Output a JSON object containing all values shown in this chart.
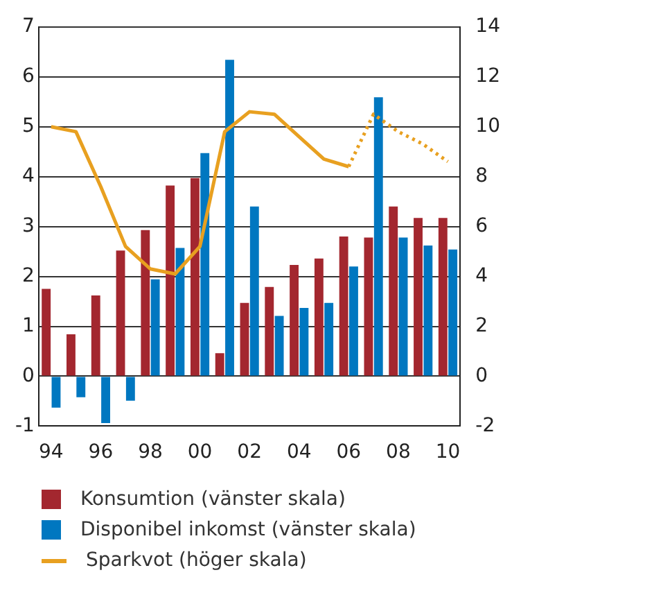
{
  "chart_data": {
    "type": "bar",
    "categories": [
      "94",
      null,
      "96",
      null,
      "98",
      null,
      "00",
      null,
      "02",
      null,
      "04",
      null,
      "06",
      null,
      "08",
      null,
      "10"
    ],
    "series": [
      {
        "name": "Konsumtion (vänster skala)",
        "color": "#a3272f",
        "values": [
          1.75,
          0.84,
          1.62,
          2.52,
          2.93,
          3.82,
          3.97,
          0.46,
          1.47,
          1.79,
          2.23,
          2.36,
          2.8,
          2.78,
          3.4,
          3.17,
          3.17
        ]
      },
      {
        "name": "Disponibel inkomst (vänster skala)",
        "color": "#0077c0",
        "values": [
          -0.63,
          -0.42,
          -0.94,
          -0.49,
          1.94,
          2.57,
          4.47,
          6.34,
          3.4,
          1.21,
          1.37,
          1.47,
          2.2,
          5.59,
          2.78,
          2.62,
          2.54
        ]
      },
      {
        "name": "Sparkvot (höger skala)",
        "type": "line",
        "axis": "y2",
        "color": "#e8a020",
        "line_style": "solid",
        "values": [
          10.0,
          9.8,
          7.6,
          5.2,
          4.3,
          4.1,
          5.2,
          9.8,
          10.6,
          10.5,
          9.6,
          8.7,
          8.4,
          null,
          null,
          null,
          null
        ]
      },
      {
        "type": "line",
        "axis": "y2",
        "color": "#e8a020",
        "line_style": "dotted",
        "values": [
          null,
          null,
          null,
          null,
          null,
          null,
          null,
          null,
          null,
          null,
          null,
          null,
          8.4,
          10.5,
          9.8,
          9.3,
          8.6
        ]
      }
    ],
    "ylim": [
      -1,
      7
    ],
    "yticks": [
      -1,
      0,
      1,
      2,
      3,
      4,
      5,
      6,
      7
    ],
    "y2lim": [
      -2,
      14
    ],
    "y2ticks": [
      -2,
      0,
      2,
      4,
      6,
      8,
      10,
      12,
      14
    ],
    "grid": "y",
    "legend": "bottom",
    "marker": "none"
  }
}
